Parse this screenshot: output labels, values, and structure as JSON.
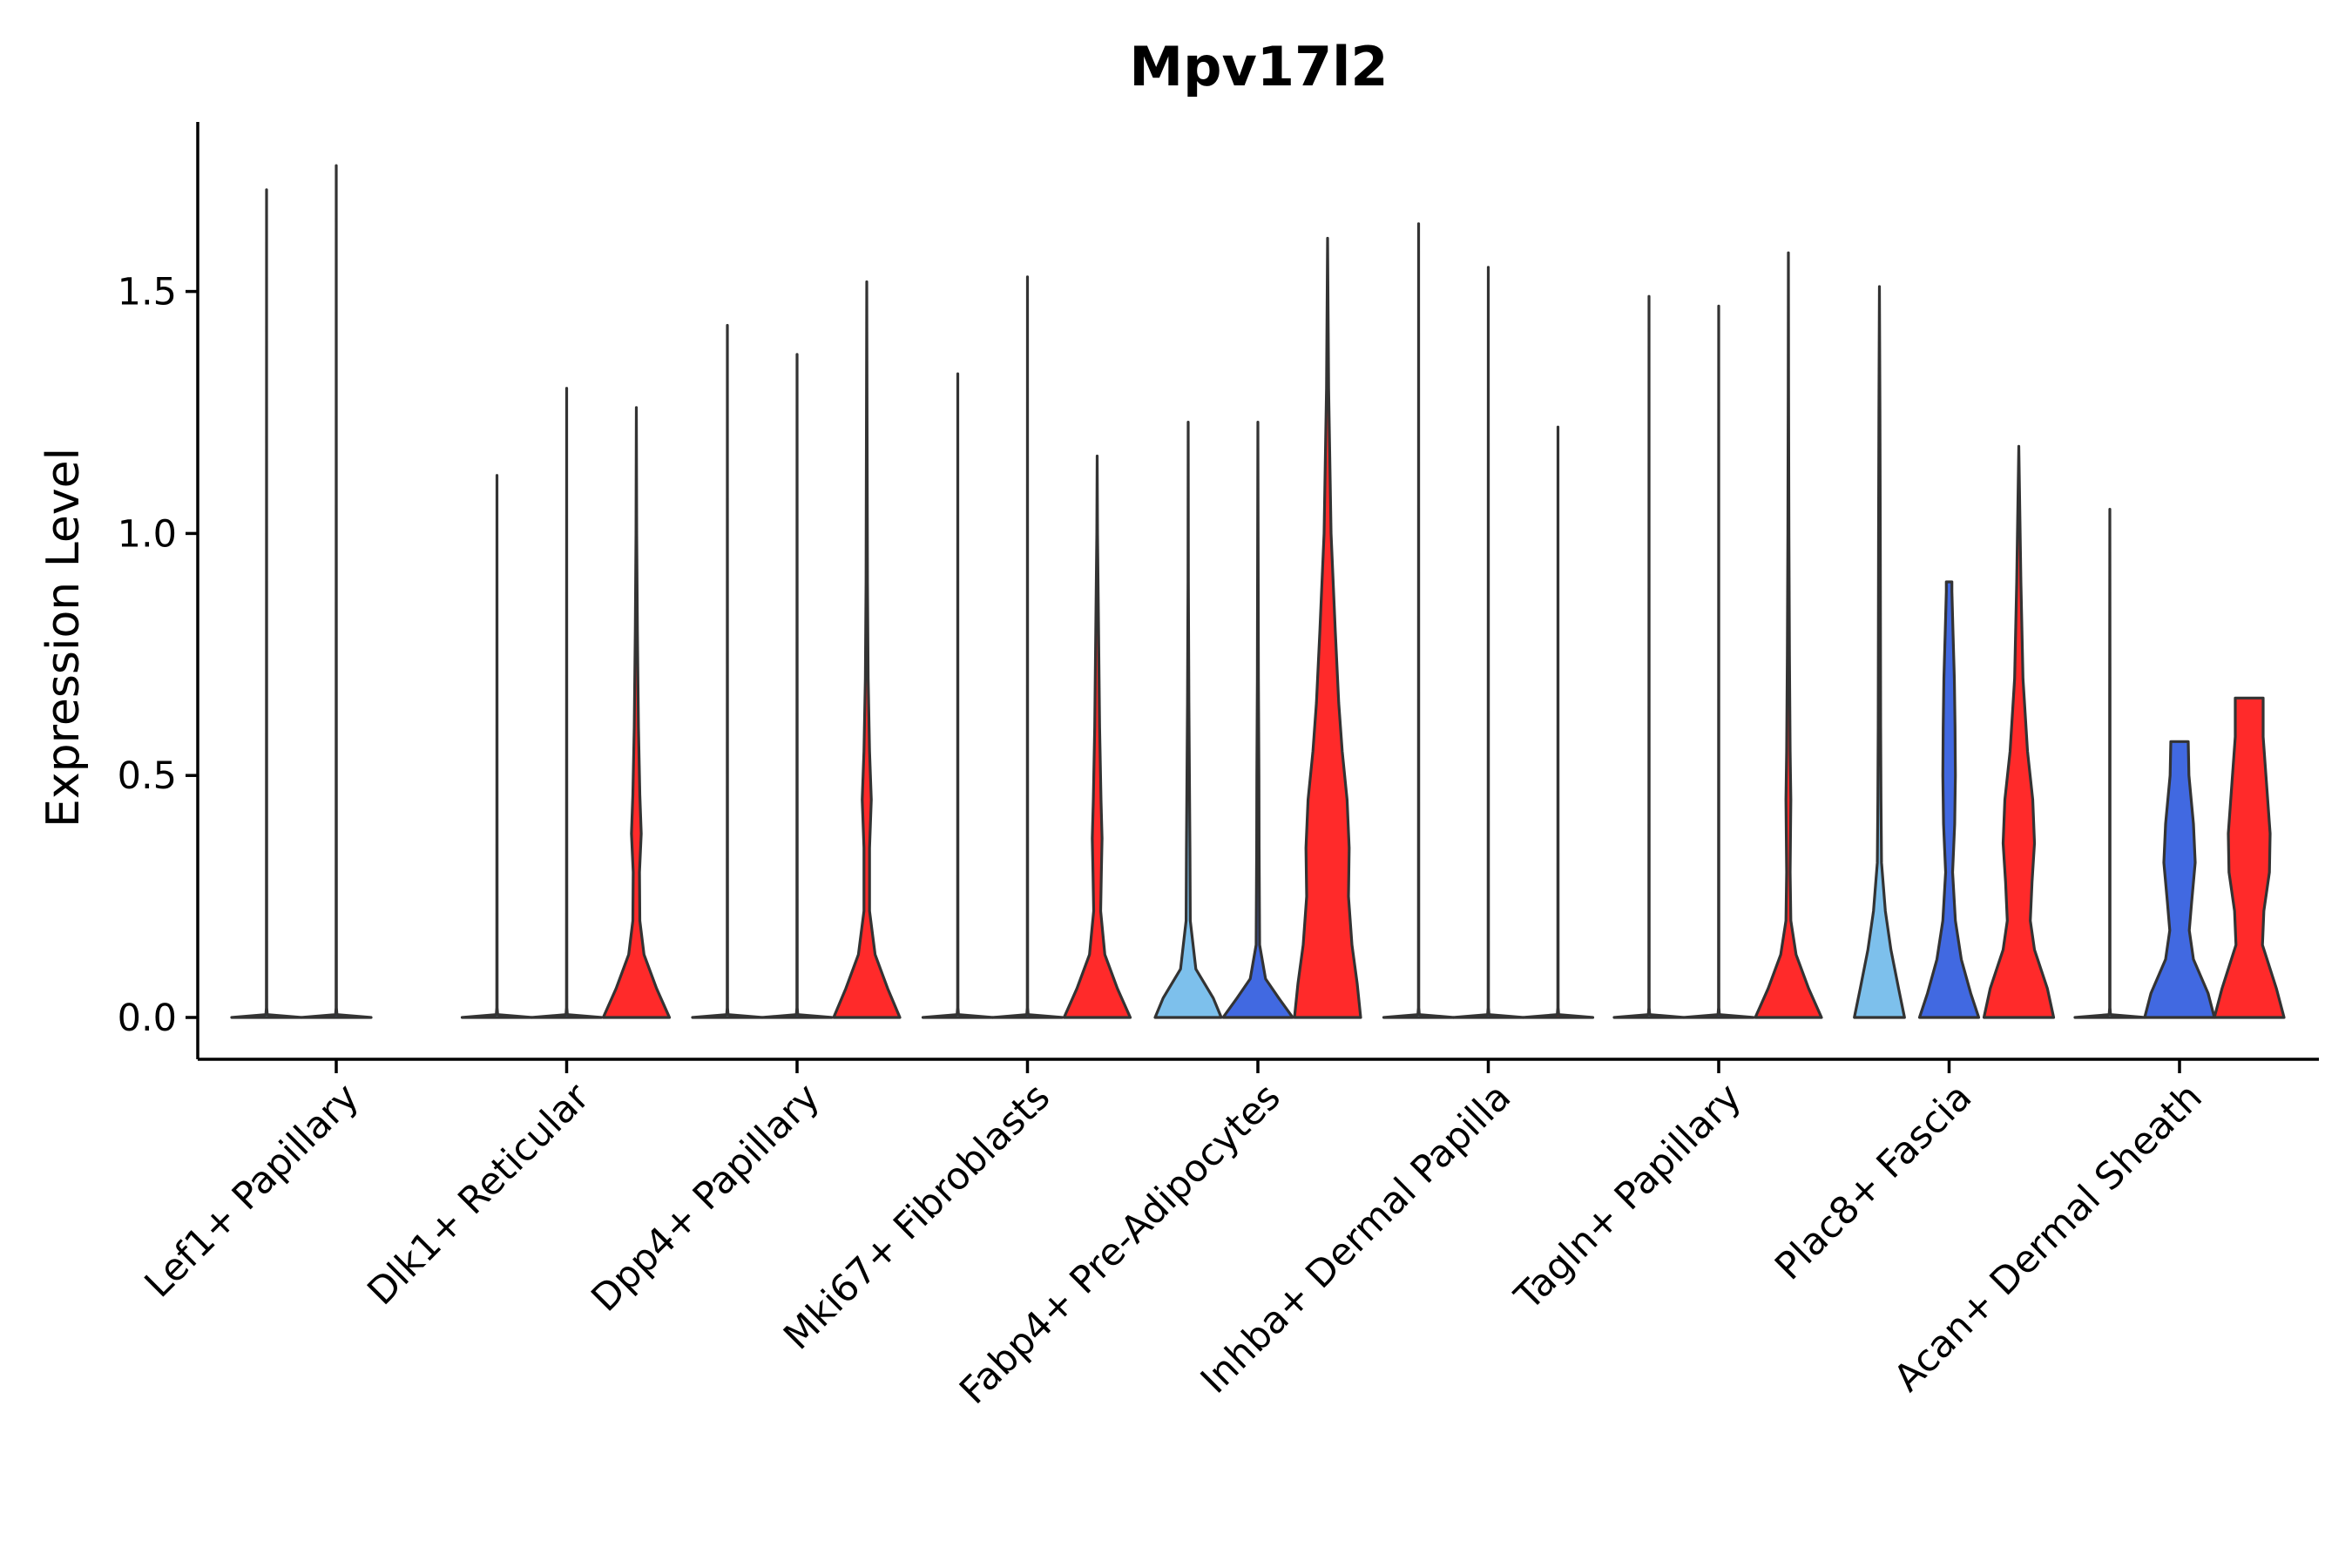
{
  "chart_data": {
    "type": "violin",
    "title": "Mpv17l2",
    "xlabel": "",
    "ylabel": "Expression Level",
    "ylim": [
      -0.09,
      1.85
    ],
    "yticks": [
      "0.0",
      "0.5",
      "1.0",
      "1.5"
    ],
    "ytick_values": [
      0.0,
      0.5,
      1.0,
      1.5
    ],
    "categories": [
      "Lef1+ Papillary",
      "Dlk1+ Reticular",
      "Dpp4+ Papillary",
      "Mki67+ Fibroblasts",
      "Fabp4+ Pre-Adipocytes",
      "Inhba+ Dermal Papilla",
      "Tagln+ Papillary",
      "Plac8+ Fascia",
      "Acan+ Dermal Sheath"
    ],
    "series": [
      {
        "name": "group-1",
        "color": "#7dc0ec",
        "max_values": [
          1.71,
          1.12,
          1.43,
          1.33,
          1.23,
          1.64,
          1.49,
          1.51,
          1.05
        ],
        "profiles": [
          [
            [
              0,
              1
            ],
            [
              0.006,
              0.02
            ],
            [
              0.02,
              0.004
            ],
            [
              1.71,
              0
            ]
          ],
          [
            [
              0,
              1
            ],
            [
              0.006,
              0.02
            ],
            [
              0.02,
              0.004
            ],
            [
              1.12,
              0
            ]
          ],
          [
            [
              0,
              1
            ],
            [
              0.006,
              0.02
            ],
            [
              0.02,
              0.004
            ],
            [
              1.43,
              0
            ]
          ],
          [
            [
              0,
              1
            ],
            [
              0.006,
              0.02
            ],
            [
              0.02,
              0.004
            ],
            [
              1.33,
              0
            ]
          ],
          [
            [
              0,
              0.95
            ],
            [
              0.04,
              0.72
            ],
            [
              0.1,
              0.22
            ],
            [
              0.2,
              0.06
            ],
            [
              0.35,
              0.05
            ],
            [
              0.5,
              0.035
            ],
            [
              0.65,
              0.02
            ],
            [
              0.9,
              0.004
            ],
            [
              1.23,
              0
            ]
          ],
          [
            [
              0,
              1
            ],
            [
              0.006,
              0.02
            ],
            [
              0.02,
              0.004
            ],
            [
              1.64,
              0
            ]
          ],
          [
            [
              0,
              1
            ],
            [
              0.006,
              0.02
            ],
            [
              0.02,
              0.004
            ],
            [
              1.49,
              0
            ]
          ],
          [
            [
              0,
              0.72
            ],
            [
              0.06,
              0.55
            ],
            [
              0.14,
              0.33
            ],
            [
              0.22,
              0.17
            ],
            [
              0.32,
              0.06
            ],
            [
              0.45,
              0.045
            ],
            [
              0.6,
              0.035
            ],
            [
              0.8,
              0.03
            ],
            [
              1.0,
              0.025
            ],
            [
              1.25,
              0.015
            ],
            [
              1.51,
              0
            ]
          ],
          [
            [
              0,
              1
            ],
            [
              0.006,
              0.02
            ],
            [
              0.02,
              0.004
            ],
            [
              0.28,
              0.006
            ],
            [
              0.5,
              0.005
            ],
            [
              0.67,
              0.004
            ],
            [
              1.05,
              0
            ]
          ]
        ]
      },
      {
        "name": "group-2",
        "color": "#4169e1",
        "max_values": [
          1.76,
          1.3,
          1.37,
          1.53,
          1.23,
          1.55,
          1.47,
          0.9,
          0.57
        ],
        "profiles": [
          [
            [
              0,
              1
            ],
            [
              0.006,
              0.02
            ],
            [
              0.02,
              0.004
            ],
            [
              1.76,
              0
            ]
          ],
          [
            [
              0,
              1
            ],
            [
              0.006,
              0.02
            ],
            [
              0.02,
              0.004
            ],
            [
              1.3,
              0
            ]
          ],
          [
            [
              0,
              1
            ],
            [
              0.006,
              0.02
            ],
            [
              0.02,
              0.004
            ],
            [
              1.37,
              0
            ]
          ],
          [
            [
              0,
              1
            ],
            [
              0.006,
              0.02
            ],
            [
              0.02,
              0.004
            ],
            [
              1.53,
              0
            ]
          ],
          [
            [
              0,
              1
            ],
            [
              0.04,
              0.6
            ],
            [
              0.08,
              0.22
            ],
            [
              0.15,
              0.05
            ],
            [
              0.35,
              0.035
            ],
            [
              0.5,
              0.03
            ],
            [
              0.7,
              0.015
            ],
            [
              1.23,
              0
            ]
          ],
          [
            [
              0,
              1
            ],
            [
              0.006,
              0.02
            ],
            [
              0.02,
              0.004
            ],
            [
              1.55,
              0
            ]
          ],
          [
            [
              0,
              1
            ],
            [
              0.006,
              0.02
            ],
            [
              0.02,
              0.004
            ],
            [
              1.47,
              0
            ]
          ],
          [
            [
              0,
              0.85
            ],
            [
              0.05,
              0.62
            ],
            [
              0.12,
              0.35
            ],
            [
              0.2,
              0.18
            ],
            [
              0.3,
              0.1
            ],
            [
              0.4,
              0.16
            ],
            [
              0.5,
              0.18
            ],
            [
              0.6,
              0.17
            ],
            [
              0.7,
              0.15
            ],
            [
              0.8,
              0.11
            ],
            [
              0.88,
              0.08
            ],
            [
              0.9,
              0.08
            ]
          ],
          [
            [
              0,
              1
            ],
            [
              0.05,
              0.82
            ],
            [
              0.12,
              0.4
            ],
            [
              0.18,
              0.28
            ],
            [
              0.24,
              0.35
            ],
            [
              0.32,
              0.45
            ],
            [
              0.4,
              0.4
            ],
            [
              0.5,
              0.27
            ],
            [
              0.57,
              0.25
            ]
          ]
        ]
      },
      {
        "name": "group-3",
        "color": "#ff2a2a",
        "max_values": [
          0,
          1.26,
          1.52,
          1.16,
          1.61,
          1.22,
          1.58,
          1.18,
          0.66
        ],
        "profiles": [
          [],
          [
            [
              0,
              0.95
            ],
            [
              0.06,
              0.58
            ],
            [
              0.13,
              0.22
            ],
            [
              0.2,
              0.1
            ],
            [
              0.3,
              0.09
            ],
            [
              0.38,
              0.14
            ],
            [
              0.46,
              0.1
            ],
            [
              0.6,
              0.06
            ],
            [
              0.8,
              0.03
            ],
            [
              1.0,
              0.01
            ],
            [
              1.26,
              0
            ]
          ],
          [
            [
              0,
              0.95
            ],
            [
              0.06,
              0.6
            ],
            [
              0.13,
              0.24
            ],
            [
              0.22,
              0.08
            ],
            [
              0.35,
              0.08
            ],
            [
              0.45,
              0.13
            ],
            [
              0.55,
              0.08
            ],
            [
              0.7,
              0.04
            ],
            [
              0.9,
              0.02
            ],
            [
              1.2,
              0.01
            ],
            [
              1.52,
              0
            ]
          ],
          [
            [
              0,
              0.95
            ],
            [
              0.06,
              0.58
            ],
            [
              0.13,
              0.22
            ],
            [
              0.22,
              0.1
            ],
            [
              0.3,
              0.12
            ],
            [
              0.37,
              0.14
            ],
            [
              0.45,
              0.11
            ],
            [
              0.6,
              0.07
            ],
            [
              0.8,
              0.04
            ],
            [
              1.0,
              0.01
            ],
            [
              1.16,
              0
            ]
          ],
          [
            [
              0,
              0.95
            ],
            [
              0.07,
              0.85
            ],
            [
              0.15,
              0.7
            ],
            [
              0.25,
              0.6
            ],
            [
              0.35,
              0.62
            ],
            [
              0.45,
              0.56
            ],
            [
              0.55,
              0.42
            ],
            [
              0.65,
              0.32
            ],
            [
              0.8,
              0.22
            ],
            [
              1.0,
              0.1
            ],
            [
              1.3,
              0.03
            ],
            [
              1.61,
              0
            ]
          ],
          [
            [
              0,
              1
            ],
            [
              0.006,
              0.02
            ],
            [
              0.02,
              0.004
            ],
            [
              1.22,
              0
            ]
          ],
          [
            [
              0,
              0.95
            ],
            [
              0.06,
              0.58
            ],
            [
              0.13,
              0.22
            ],
            [
              0.2,
              0.07
            ],
            [
              0.3,
              0.05
            ],
            [
              0.45,
              0.07
            ],
            [
              0.55,
              0.05
            ],
            [
              0.75,
              0.03
            ],
            [
              1.0,
              0.015
            ],
            [
              1.3,
              0.006
            ],
            [
              1.58,
              0
            ]
          ],
          [
            [
              0,
              1
            ],
            [
              0.06,
              0.82
            ],
            [
              0.14,
              0.45
            ],
            [
              0.2,
              0.33
            ],
            [
              0.28,
              0.38
            ],
            [
              0.36,
              0.45
            ],
            [
              0.45,
              0.4
            ],
            [
              0.55,
              0.25
            ],
            [
              0.7,
              0.12
            ],
            [
              0.9,
              0.06
            ],
            [
              1.18,
              0
            ]
          ],
          [
            [
              0,
              1
            ],
            [
              0.06,
              0.78
            ],
            [
              0.15,
              0.38
            ],
            [
              0.22,
              0.42
            ],
            [
              0.3,
              0.58
            ],
            [
              0.38,
              0.6
            ],
            [
              0.48,
              0.5
            ],
            [
              0.58,
              0.4
            ],
            [
              0.66,
              0.4
            ]
          ]
        ]
      }
    ]
  }
}
